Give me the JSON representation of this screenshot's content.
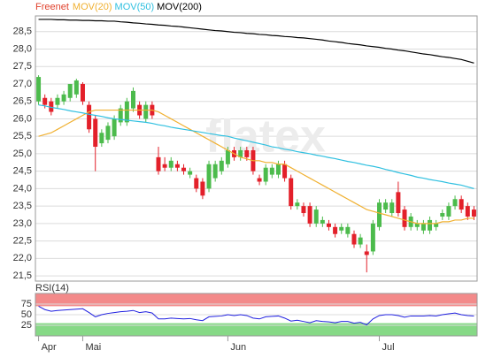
{
  "chart_data": [
    {
      "type": "candlestick",
      "name": "Freenet",
      "name_color": "#e0412c",
      "up_color": "#4cbb4c",
      "down_color": "#e3202a",
      "watermark": "flatex",
      "candles": [
        [
          26.5,
          27.25,
          26.4,
          27.2
        ],
        [
          26.6,
          26.7,
          26.3,
          26.4
        ],
        [
          26.5,
          26.6,
          26.1,
          26.2
        ],
        [
          26.4,
          26.7,
          26.3,
          26.6
        ],
        [
          26.5,
          26.8,
          26.4,
          26.7
        ],
        [
          26.6,
          27.0,
          26.5,
          27.0
        ],
        [
          26.7,
          27.15,
          26.6,
          27.1
        ],
        [
          27.0,
          27.05,
          26.4,
          26.5
        ],
        [
          26.4,
          26.5,
          25.6,
          25.7
        ],
        [
          26.0,
          26.1,
          24.5,
          25.2
        ],
        [
          25.3,
          25.7,
          25.2,
          25.6
        ],
        [
          25.4,
          25.9,
          25.3,
          25.8
        ],
        [
          25.5,
          26.1,
          25.4,
          26.0
        ],
        [
          25.9,
          26.4,
          25.8,
          26.3
        ],
        [
          25.9,
          26.6,
          25.8,
          26.5
        ],
        [
          26.3,
          26.9,
          26.2,
          26.8
        ],
        [
          26.4,
          26.5,
          26.0,
          26.1
        ],
        [
          26.0,
          26.5,
          25.9,
          26.4
        ],
        [
          26.4,
          26.5,
          26.0,
          26.1
        ],
        [
          24.9,
          25.2,
          24.4,
          24.5
        ],
        [
          24.7,
          24.9,
          24.5,
          24.6
        ],
        [
          24.6,
          24.9,
          24.5,
          24.8
        ],
        [
          24.7,
          24.8,
          24.5,
          24.6
        ],
        [
          24.6,
          24.7,
          24.4,
          24.5
        ],
        [
          24.4,
          24.6,
          24.3,
          24.5
        ],
        [
          24.3,
          24.4,
          23.9,
          24.0
        ],
        [
          24.2,
          24.3,
          23.7,
          23.8
        ],
        [
          24.0,
          24.8,
          23.9,
          24.7
        ],
        [
          24.3,
          24.8,
          24.2,
          24.7
        ],
        [
          24.5,
          24.9,
          24.4,
          24.8
        ],
        [
          24.7,
          25.2,
          24.6,
          25.1
        ],
        [
          25.1,
          25.2,
          24.8,
          24.9
        ],
        [
          24.9,
          25.2,
          24.8,
          25.1
        ],
        [
          25.1,
          25.2,
          24.8,
          24.9
        ],
        [
          25.1,
          25.2,
          24.4,
          24.5
        ],
        [
          24.3,
          24.4,
          24.1,
          24.2
        ],
        [
          24.2,
          24.7,
          24.1,
          24.6
        ],
        [
          24.4,
          24.7,
          24.3,
          24.6
        ],
        [
          24.4,
          24.8,
          24.3,
          24.7
        ],
        [
          24.7,
          24.8,
          24.2,
          24.3
        ],
        [
          24.3,
          24.4,
          23.4,
          23.5
        ],
        [
          23.5,
          23.7,
          23.4,
          23.6
        ],
        [
          23.5,
          23.6,
          23.2,
          23.3
        ],
        [
          23.5,
          23.6,
          22.9,
          23.0
        ],
        [
          23.0,
          23.5,
          22.9,
          23.4
        ],
        [
          23.0,
          23.2,
          22.9,
          23.1
        ],
        [
          23.0,
          23.1,
          22.8,
          22.9
        ],
        [
          22.9,
          23.0,
          22.6,
          22.7
        ],
        [
          22.8,
          23.0,
          22.7,
          22.9
        ],
        [
          22.7,
          23.0,
          22.6,
          22.9
        ],
        [
          22.7,
          22.8,
          22.3,
          22.4
        ],
        [
          22.4,
          22.7,
          22.3,
          22.6
        ],
        [
          22.2,
          22.4,
          21.6,
          22.1
        ],
        [
          22.2,
          23.1,
          22.1,
          23.0
        ],
        [
          22.9,
          23.7,
          22.8,
          23.6
        ],
        [
          23.4,
          23.7,
          23.3,
          23.6
        ],
        [
          23.3,
          23.7,
          23.2,
          23.6
        ],
        [
          23.9,
          24.2,
          23.2,
          23.3
        ],
        [
          23.4,
          23.5,
          22.8,
          22.9
        ],
        [
          22.9,
          23.3,
          22.8,
          23.2
        ],
        [
          22.9,
          23.1,
          22.8,
          23.0
        ],
        [
          22.8,
          23.1,
          22.7,
          23.0
        ],
        [
          22.8,
          23.2,
          22.7,
          23.1
        ],
        [
          22.9,
          23.1,
          22.8,
          23.0
        ],
        [
          23.2,
          23.4,
          23.1,
          23.3
        ],
        [
          23.2,
          23.6,
          23.1,
          23.5
        ],
        [
          23.5,
          23.8,
          23.4,
          23.7
        ],
        [
          23.7,
          23.8,
          23.3,
          23.4
        ],
        [
          23.5,
          23.6,
          23.1,
          23.2
        ],
        [
          23.4,
          23.5,
          23.1,
          23.2
        ]
      ],
      "series": [
        {
          "name": "MOV(20)",
          "color": "#f0b030",
          "values": [
            25.5,
            25.55,
            25.6,
            25.7,
            25.8,
            25.9,
            26.0,
            26.1,
            26.2,
            26.25,
            26.25,
            26.25,
            26.25,
            26.25,
            26.25,
            26.25,
            26.25,
            26.25,
            26.25,
            26.2,
            26.1,
            26.0,
            25.9,
            25.8,
            25.7,
            25.6,
            25.5,
            25.4,
            25.3,
            25.2,
            25.1,
            25.0,
            24.9,
            24.85,
            24.8,
            24.8,
            24.75,
            24.75,
            24.7,
            24.7,
            24.6,
            24.5,
            24.4,
            24.3,
            24.2,
            24.1,
            24.0,
            23.9,
            23.8,
            23.7,
            23.6,
            23.5,
            23.4,
            23.35,
            23.3,
            23.25,
            23.2,
            23.15,
            23.1,
            23.05,
            23.0,
            23.0,
            23.0,
            23.0,
            23.05,
            23.05,
            23.1,
            23.1,
            23.15,
            23.15
          ]
        },
        {
          "name": "MOV(50)",
          "color": "#30c0e0",
          "values": [
            26.4,
            26.37,
            26.33,
            26.3,
            26.27,
            26.23,
            26.2,
            26.17,
            26.13,
            26.1,
            26.07,
            26.03,
            26.0,
            25.98,
            25.96,
            25.94,
            25.92,
            25.9,
            25.87,
            25.83,
            25.8,
            25.76,
            25.73,
            25.7,
            25.67,
            25.64,
            25.61,
            25.58,
            25.55,
            25.52,
            25.5,
            25.45,
            25.41,
            25.37,
            25.33,
            25.29,
            25.25,
            25.2,
            25.17,
            25.13,
            25.1,
            25.06,
            25.03,
            25.0,
            24.96,
            24.93,
            24.89,
            24.86,
            24.82,
            24.78,
            24.75,
            24.71,
            24.67,
            24.64,
            24.6,
            24.55,
            24.51,
            24.46,
            24.42,
            24.38,
            24.33,
            24.3,
            24.26,
            24.23,
            24.2,
            24.16,
            24.13,
            24.1,
            24.05,
            24.0
          ]
        },
        {
          "name": "MOV(200)",
          "color": "#000000",
          "values": [
            28.85,
            28.85,
            28.85,
            28.84,
            28.84,
            28.83,
            28.83,
            28.82,
            28.82,
            28.81,
            28.81,
            28.8,
            28.8,
            28.78,
            28.77,
            28.75,
            28.74,
            28.72,
            28.71,
            28.69,
            28.68,
            28.66,
            28.65,
            28.63,
            28.61,
            28.59,
            28.57,
            28.55,
            28.53,
            28.52,
            28.5,
            28.48,
            28.47,
            28.45,
            28.44,
            28.42,
            28.41,
            28.39,
            28.38,
            28.36,
            28.35,
            28.33,
            28.32,
            28.3,
            28.28,
            28.26,
            28.23,
            28.21,
            28.19,
            28.16,
            28.14,
            28.12,
            28.09,
            28.07,
            28.05,
            28.02,
            28.0,
            27.97,
            27.95,
            27.92,
            27.89,
            27.86,
            27.84,
            27.81,
            27.78,
            27.76,
            27.73,
            27.7,
            27.65,
            27.6
          ]
        }
      ],
      "ylim": [
        21.35,
        28.95
      ],
      "yticks": [
        {
          "value": 21.5,
          "label": "21,5"
        },
        {
          "value": 22,
          "label": "22,0"
        },
        {
          "value": 22.5,
          "label": "22,5"
        },
        {
          "value": 23,
          "label": "23,0"
        },
        {
          "value": 23.5,
          "label": "23,5"
        },
        {
          "value": 24,
          "label": "24,0"
        },
        {
          "value": 24.5,
          "label": "24,5"
        },
        {
          "value": 25,
          "label": "25,0"
        },
        {
          "value": 25.5,
          "label": "25,5"
        },
        {
          "value": 26,
          "label": "26,0"
        },
        {
          "value": 26.5,
          "label": "26,5"
        },
        {
          "value": 27,
          "label": "27,0"
        },
        {
          "value": 27.5,
          "label": "27,5"
        },
        {
          "value": 28,
          "label": "28,0"
        },
        {
          "value": 28.5,
          "label": "28,5"
        }
      ],
      "grid": true
    },
    {
      "type": "line",
      "title": "RSI(14)",
      "categories": [
        "Apr",
        null,
        null,
        null,
        null,
        null,
        null,
        "Mai",
        null,
        null,
        null,
        null,
        null,
        null,
        null,
        null,
        null,
        null,
        null,
        null,
        null,
        null,
        null,
        null,
        null,
        null,
        null,
        null,
        null,
        null,
        "Jun",
        null,
        null,
        null,
        null,
        null,
        null,
        null,
        null,
        null,
        null,
        null,
        null,
        null,
        null,
        null,
        null,
        null,
        null,
        null,
        null,
        null,
        null,
        null,
        "Jul",
        null,
        null,
        null,
        null,
        null,
        null,
        null,
        null,
        null,
        null,
        null,
        null,
        null,
        null,
        null
      ],
      "series": [
        {
          "color": "#2020e0",
          "values": [
            70,
            62,
            58,
            60,
            61,
            62,
            63,
            64,
            55,
            45,
            50,
            53,
            55,
            57,
            58,
            60,
            55,
            57,
            54,
            40,
            40,
            42,
            41,
            40,
            41,
            38,
            36,
            45,
            46,
            47,
            50,
            48,
            50,
            48,
            42,
            40,
            45,
            46,
            47,
            42,
            35,
            37,
            34,
            31,
            36,
            34,
            33,
            31,
            34,
            34,
            30,
            32,
            26,
            40,
            48,
            50,
            50,
            48,
            44,
            47,
            47,
            47,
            48,
            47,
            50,
            52,
            54,
            50,
            48,
            47
          ]
        }
      ],
      "bands": [
        {
          "from": 70,
          "to": 100,
          "color": "#f38a8a"
        },
        {
          "from": 0,
          "to": 30,
          "color": "#86d986"
        }
      ],
      "ylim": [
        0,
        100
      ],
      "yticks": [
        25,
        50,
        75
      ],
      "grid": true
    }
  ]
}
